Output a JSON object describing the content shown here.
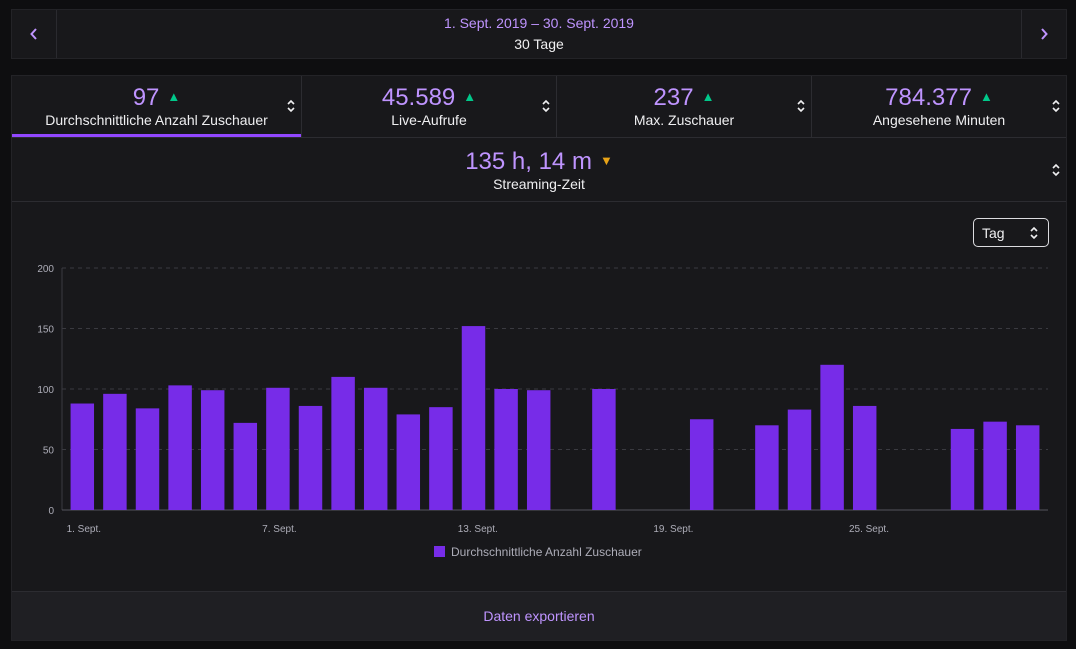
{
  "date_nav": {
    "range": "1. Sept. 2019 – 30. Sept. 2019",
    "days": "30 Tage",
    "prev_icon": "chevron-left-icon",
    "next_icon": "chevron-right-icon"
  },
  "stats": [
    {
      "value": "97",
      "label": "Durchschnittliche Anzahl Zuschauer",
      "trend": "up"
    },
    {
      "value": "45.589",
      "label": "Live-Aufrufe",
      "trend": "up"
    },
    {
      "value": "237",
      "label": "Max. Zuschauer",
      "trend": "up"
    },
    {
      "value": "784.377",
      "label": "Angesehene Minuten",
      "trend": "up"
    }
  ],
  "streaming": {
    "value": "135 h, 14 m",
    "label": "Streaming-Zeit",
    "trend": "down"
  },
  "interval_select": {
    "value": "Tag"
  },
  "export_label": "Daten exportieren",
  "colors": {
    "accent": "#bf94ff",
    "bar": "#772ce8",
    "trend_up": "#00c88a",
    "trend_down": "#e8a317"
  },
  "chart_data": {
    "type": "bar",
    "title": "",
    "xlabel": "",
    "ylabel": "",
    "ylim": [
      0,
      200
    ],
    "yticks": [
      0,
      50,
      100,
      150,
      200
    ],
    "categories": [
      "1",
      "2",
      "3",
      "4",
      "5",
      "6",
      "7",
      "8",
      "9",
      "10",
      "11",
      "12",
      "13",
      "14",
      "15",
      "16",
      "17",
      "18",
      "19",
      "20",
      "21",
      "22",
      "23",
      "24",
      "25",
      "26",
      "27",
      "28",
      "29",
      "30"
    ],
    "xtick_labels": [
      {
        "index": 0,
        "label": "1. Sept."
      },
      {
        "index": 6,
        "label": "7. Sept."
      },
      {
        "index": 12,
        "label": "13. Sept."
      },
      {
        "index": 18,
        "label": "19. Sept."
      },
      {
        "index": 24,
        "label": "25. Sept."
      }
    ],
    "series": [
      {
        "name": "Durchschnittliche Anzahl Zuschauer",
        "values": [
          88,
          96,
          84,
          103,
          99,
          72,
          101,
          86,
          110,
          101,
          79,
          85,
          152,
          100,
          99,
          null,
          100,
          null,
          null,
          75,
          null,
          70,
          83,
          120,
          86,
          null,
          null,
          67,
          73,
          70
        ]
      }
    ],
    "legend_position": "bottom-center",
    "grid": true
  }
}
